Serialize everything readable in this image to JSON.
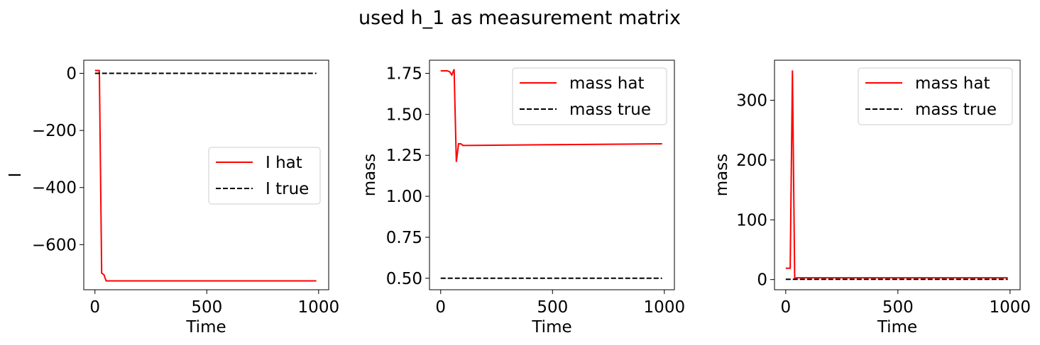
{
  "suptitle": "used h_1 as measurement matrix",
  "chart_data": [
    {
      "type": "line",
      "xlabel": "Time",
      "ylabel": "I",
      "xlim": [
        -50,
        1045
      ],
      "ylim": [
        -758,
        46
      ],
      "xticks": [
        0,
        500,
        1000
      ],
      "xtick_labels": [
        "0",
        "500",
        "1000"
      ],
      "yticks": [
        0,
        -200,
        -400,
        -600
      ],
      "ytick_labels": [
        "0",
        "−200",
        "−400",
        "−600"
      ],
      "legend_position": "center-right",
      "series": [
        {
          "name": "I hat",
          "color": "#ff0000",
          "dash": "solid",
          "x": [
            0,
            10,
            19,
            20,
            30,
            40,
            50,
            990
          ],
          "y": [
            10,
            10,
            10,
            -10,
            -700,
            -705,
            -727,
            -727
          ]
        },
        {
          "name": "I true",
          "color": "#000000",
          "dash": "dashed",
          "x": [
            0,
            990
          ],
          "y": [
            0,
            0
          ]
        }
      ]
    },
    {
      "type": "line",
      "xlabel": "Time",
      "ylabel": "mass",
      "xlim": [
        -50,
        1045
      ],
      "ylim": [
        0.43,
        1.83
      ],
      "xticks": [
        0,
        500,
        1000
      ],
      "xtick_labels": [
        "0",
        "500",
        "1000"
      ],
      "yticks": [
        0.5,
        0.75,
        1.0,
        1.25,
        1.5,
        1.75
      ],
      "ytick_labels": [
        "0.50",
        "0.75",
        "1.00",
        "1.25",
        "1.50",
        "1.75"
      ],
      "legend_position": "top-right",
      "series": [
        {
          "name": "mass hat",
          "color": "#ff0000",
          "dash": "solid",
          "x": [
            0,
            30,
            40,
            50,
            60,
            70,
            80,
            90,
            100,
            990
          ],
          "y": [
            1.765,
            1.765,
            1.76,
            1.74,
            1.775,
            1.21,
            1.32,
            1.32,
            1.31,
            1.32
          ]
        },
        {
          "name": "mass true",
          "color": "#000000",
          "dash": "dashed",
          "x": [
            0,
            990
          ],
          "y": [
            0.5,
            0.5
          ]
        }
      ]
    },
    {
      "type": "line",
      "xlabel": "Time",
      "ylabel": "mass",
      "xlim": [
        -50,
        1045
      ],
      "ylim": [
        -17,
        367
      ],
      "xticks": [
        0,
        500,
        1000
      ],
      "xtick_labels": [
        "0",
        "500",
        "1000"
      ],
      "yticks": [
        0,
        100,
        200,
        300
      ],
      "ytick_labels": [
        "0",
        "100",
        "200",
        "300"
      ],
      "legend_position": "top-right",
      "series": [
        {
          "name": "mass hat",
          "color": "#ff0000",
          "dash": "solid",
          "x": [
            0,
            20,
            30,
            40,
            50,
            990
          ],
          "y": [
            19,
            19,
            350,
            2,
            3,
            3
          ]
        },
        {
          "name": "mass true",
          "color": "#000000",
          "dash": "dashed",
          "x": [
            0,
            990
          ],
          "y": [
            0.5,
            0.5
          ]
        }
      ]
    }
  ]
}
